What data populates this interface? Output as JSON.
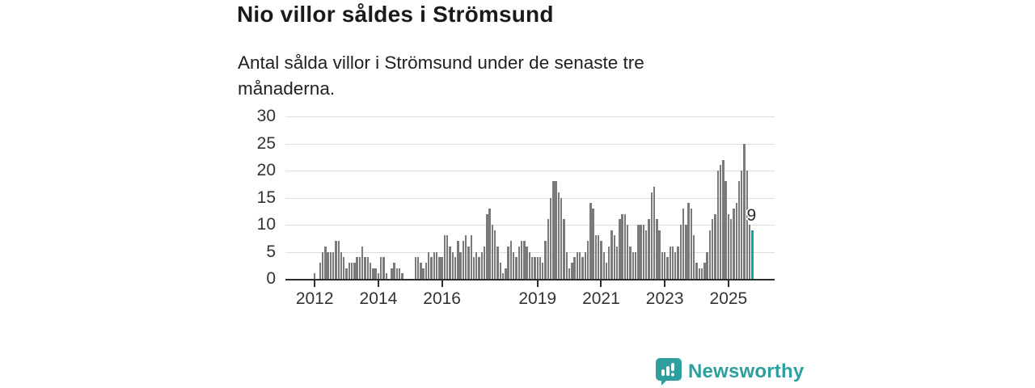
{
  "header": {
    "title": "Nio villor såldes i Strömsund",
    "subtitle": "Antal sålda villor i Strömsund under de senaste tre månaderna."
  },
  "chart_data": {
    "type": "bar",
    "title": "Nio villor såldes i Strömsund",
    "subtitle": "Antal sålda villor i Strömsund under de senaste tre månaderna.",
    "ylabel": "",
    "xlabel": "",
    "ylim": [
      0,
      30
    ],
    "y_ticks": [
      0,
      5,
      10,
      15,
      20,
      25,
      30
    ],
    "x_tick_labels": [
      "2012",
      "2014",
      "2016",
      "2019",
      "2021",
      "2023",
      "2025"
    ],
    "grid": true,
    "bar_color": "#7a7a7a",
    "highlight_color": "#0ba6a6",
    "last_bar_label": "9",
    "last_bar_value": 9,
    "years": [
      {
        "year": 2012,
        "monthly": [
          1,
          0,
          3,
          5,
          6,
          5,
          5,
          5,
          7,
          7,
          5,
          4
        ]
      },
      {
        "year": 2013,
        "monthly": [
          2,
          3,
          3,
          3,
          4,
          4,
          6,
          4,
          4,
          3,
          2,
          2
        ]
      },
      {
        "year": 2014,
        "monthly": [
          1,
          4,
          4,
          1,
          0,
          2,
          3,
          2,
          2,
          1,
          0,
          0
        ]
      },
      {
        "year": 2015,
        "monthly": [
          0,
          0,
          4,
          4,
          3,
          2,
          3,
          5,
          4,
          5,
          5,
          4
        ]
      },
      {
        "year": 2016,
        "monthly": [
          4,
          8,
          8,
          6,
          5,
          4,
          7,
          5,
          7,
          8,
          6,
          8
        ]
      },
      {
        "year": 2017,
        "monthly": [
          4,
          5,
          4,
          5,
          6,
          12,
          13,
          10,
          9,
          6,
          3,
          1
        ]
      },
      {
        "year": 2018,
        "monthly": [
          2,
          6,
          7,
          5,
          4,
          6,
          7,
          7,
          6,
          5,
          4,
          4
        ]
      },
      {
        "year": 2019,
        "monthly": [
          4,
          4,
          3,
          7,
          11,
          15,
          18,
          18,
          16,
          15,
          11,
          5
        ]
      },
      {
        "year": 2020,
        "monthly": [
          2,
          3,
          4,
          5,
          5,
          4,
          5,
          7,
          14,
          13,
          8,
          8
        ]
      },
      {
        "year": 2021,
        "monthly": [
          7,
          5,
          3,
          6,
          9,
          8,
          6,
          11,
          12,
          12,
          10,
          6
        ]
      },
      {
        "year": 2022,
        "monthly": [
          5,
          5,
          10,
          10,
          10,
          9,
          11,
          16,
          17,
          11,
          9,
          5
        ]
      },
      {
        "year": 2023,
        "monthly": [
          5,
          4,
          6,
          6,
          5,
          6,
          10,
          13,
          10,
          14,
          13,
          8
        ]
      },
      {
        "year": 2024,
        "monthly": [
          3,
          2,
          2,
          3,
          5,
          9,
          11,
          12,
          20,
          21,
          22,
          18
        ]
      },
      {
        "year": 2025,
        "monthly": [
          12,
          11,
          13,
          14,
          18,
          20,
          25,
          20,
          10,
          9
        ]
      }
    ]
  },
  "footer": {
    "brand": "Newsworthy",
    "brand_color": "#2e9e9e"
  }
}
